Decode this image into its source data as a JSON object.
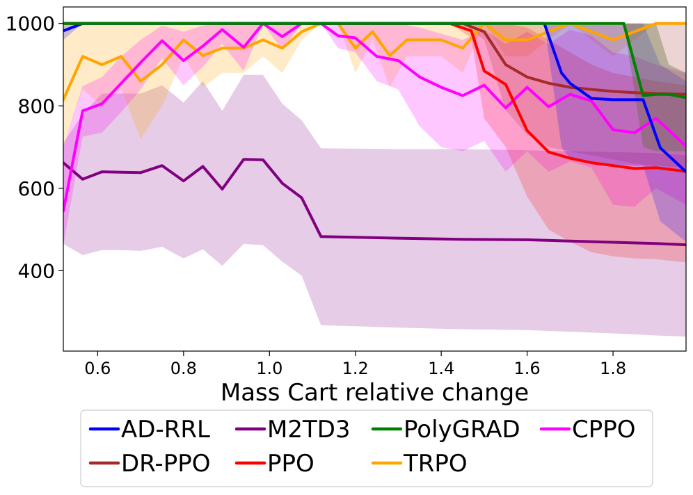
{
  "chart_data": {
    "type": "line",
    "title": "",
    "xlabel": "Mass Cart relative change",
    "ylabel": "",
    "xlim": [
      0.52,
      1.97
    ],
    "ylim": [
      205,
      1040
    ],
    "xticks": [
      0.6,
      0.8,
      1.0,
      1.2,
      1.4,
      1.6,
      1.8
    ],
    "xtick_labels": [
      "0.6",
      "0.8",
      "1.0",
      "1.2",
      "1.4",
      "1.6",
      "1.8"
    ],
    "yticks": [
      400,
      600,
      800,
      1000
    ],
    "ytick_labels": [
      "400",
      "600",
      "800",
      "1000"
    ],
    "legend_position": "bottom-outside",
    "series": [
      {
        "name": "M2TD3",
        "color": "#800080",
        "band_color": "#800080",
        "band_opacity": 0.2,
        "x": [
          0.52,
          0.565,
          0.61,
          0.655,
          0.7,
          0.75,
          0.8,
          0.845,
          0.89,
          0.94,
          0.985,
          1.03,
          1.075,
          1.12,
          1.3,
          1.45,
          1.6,
          1.7,
          1.8,
          1.9,
          1.97
        ],
        "values": [
          662,
          622,
          640,
          639,
          638,
          655,
          618,
          653,
          598,
          670,
          669,
          612,
          577,
          483,
          479,
          476,
          475,
          472,
          469,
          466,
          463
        ],
        "upper": [
          710,
          780,
          830,
          830,
          830,
          850,
          808,
          860,
          788,
          875,
          875,
          805,
          765,
          697,
          695,
          695,
          692,
          690,
          688,
          685,
          680
        ],
        "lower": [
          465,
          438,
          450,
          450,
          448,
          458,
          430,
          452,
          412,
          465,
          462,
          422,
          388,
          268,
          262,
          258,
          256,
          252,
          248,
          243,
          240
        ]
      },
      {
        "name": "TRPO",
        "color": "#ffa500",
        "band_color": "#ffa500",
        "band_opacity": 0.22,
        "x": [
          0.52,
          0.565,
          0.61,
          0.655,
          0.7,
          0.75,
          0.8,
          0.845,
          0.89,
          0.94,
          0.985,
          1.03,
          1.075,
          1.12,
          1.16,
          1.2,
          1.24,
          1.28,
          1.32,
          1.36,
          1.4,
          1.45,
          1.5,
          1.55,
          1.6,
          1.65,
          1.7,
          1.75,
          1.8,
          1.85,
          1.9,
          1.97
        ],
        "values": [
          815,
          920,
          900,
          920,
          860,
          900,
          960,
          922,
          940,
          940,
          960,
          940,
          980,
          1000,
          1000,
          940,
          980,
          922,
          960,
          960,
          960,
          940,
          1000,
          960,
          960,
          980,
          1000,
          980,
          960,
          980,
          1000,
          1000
        ],
        "upper": [
          1000,
          1000,
          1000,
          1000,
          1000,
          1000,
          1000,
          1000,
          1000,
          1000,
          1000,
          1000,
          1000,
          1000,
          1000,
          1000,
          1000,
          1000,
          1000,
          1000,
          1000,
          1000,
          1000,
          1000,
          1000,
          1000,
          1000,
          1000,
          1000,
          1000,
          1000,
          1000
        ],
        "lower": [
          700,
          840,
          800,
          840,
          720,
          800,
          920,
          845,
          880,
          880,
          920,
          880,
          960,
          1000,
          1000,
          880,
          960,
          845,
          920,
          920,
          920,
          880,
          1000,
          920,
          920,
          960,
          1000,
          960,
          920,
          960,
          1000,
          1000
        ]
      },
      {
        "name": "CPPO",
        "color": "#ff00ff",
        "band_color": "#ff00ff",
        "band_opacity": 0.22,
        "x": [
          0.52,
          0.565,
          0.61,
          0.655,
          0.7,
          0.75,
          0.8,
          0.845,
          0.89,
          0.94,
          0.985,
          1.03,
          1.075,
          1.12,
          1.16,
          1.2,
          1.25,
          1.3,
          1.35,
          1.4,
          1.45,
          1.5,
          1.55,
          1.6,
          1.65,
          1.7,
          1.75,
          1.8,
          1.85,
          1.9,
          1.97
        ],
        "values": [
          545,
          788,
          805,
          855,
          905,
          958,
          910,
          945,
          985,
          942,
          1000,
          968,
          1000,
          1000,
          970,
          965,
          920,
          910,
          870,
          845,
          825,
          850,
          795,
          845,
          798,
          828,
          812,
          742,
          735,
          770,
          702
        ],
        "upper": [
          700,
          848,
          870,
          920,
          960,
          995,
          980,
          995,
          1000,
          1000,
          1000,
          1000,
          1000,
          1000,
          1000,
          1000,
          1000,
          1000,
          990,
          975,
          960,
          985,
          950,
          980,
          950,
          985,
          970,
          930,
          920,
          900,
          880
        ],
        "lower": [
          462,
          725,
          735,
          785,
          840,
          915,
          850,
          895,
          950,
          885,
          1000,
          935,
          1000,
          1000,
          940,
          930,
          860,
          840,
          750,
          700,
          690,
          715,
          640,
          690,
          640,
          665,
          650,
          560,
          555,
          600,
          560
        ]
      },
      {
        "name": "PPO",
        "color": "#ff0000",
        "band_color": "#ff0000",
        "band_opacity": 0.2,
        "x": [
          0.52,
          1.42,
          1.47,
          1.5,
          1.55,
          1.6,
          1.65,
          1.7,
          1.75,
          1.8,
          1.85,
          1.9,
          1.97
        ],
        "values": [
          1000,
          1000,
          982,
          885,
          852,
          740,
          688,
          673,
          662,
          655,
          648,
          650,
          641
        ],
        "upper": [
          1000,
          1000,
          1000,
          1000,
          1000,
          990,
          960,
          930,
          900,
          880,
          870,
          860,
          850
        ],
        "lower": [
          1000,
          1000,
          965,
          770,
          700,
          580,
          500,
          470,
          445,
          435,
          430,
          428,
          420
        ]
      },
      {
        "name": "DR-PPO",
        "color": "#a52a2a",
        "band_color": "#a52a2a",
        "band_opacity": 0.2,
        "x": [
          0.52,
          1.45,
          1.5,
          1.55,
          1.6,
          1.65,
          1.7,
          1.75,
          1.8,
          1.85,
          1.9,
          1.97
        ],
        "values": [
          1000,
          1000,
          980,
          900,
          870,
          855,
          845,
          840,
          835,
          832,
          830,
          828
        ],
        "upper": [
          1000,
          1000,
          1000,
          1000,
          1000,
          1000,
          1000,
          1000,
          1000,
          1000,
          1000,
          1000
        ],
        "lower": [
          1000,
          1000,
          960,
          790,
          730,
          700,
          690,
          680,
          670,
          660,
          655,
          650
        ]
      },
      {
        "name": "AD-RRL",
        "color": "#0000ff",
        "band_color": "#0000ff",
        "band_opacity": 0.2,
        "x": [
          0.52,
          0.565,
          1.64,
          1.68,
          1.7,
          1.75,
          1.8,
          1.85,
          1.87,
          1.91,
          1.97
        ],
        "values": [
          982,
          1000,
          1000,
          880,
          855,
          818,
          815,
          815,
          815,
          698,
          640
        ],
        "upper": [
          1000,
          1000,
          1000,
          1000,
          1000,
          1000,
          1000,
          1000,
          1000,
          900,
          860
        ],
        "lower": [
          960,
          1000,
          1000,
          700,
          670,
          660,
          658,
          655,
          655,
          520,
          470
        ]
      },
      {
        "name": "PolyGRAD",
        "color": "#008000",
        "band_color": "#556b2f",
        "band_opacity": 0.35,
        "x": [
          0.52,
          1.825,
          1.87,
          1.9,
          1.93,
          1.97
        ],
        "values": [
          1000,
          1000,
          825,
          828,
          828,
          820
        ],
        "upper": [
          1000,
          1000,
          1000,
          1000,
          900,
          880
        ],
        "lower": [
          1000,
          1000,
          700,
          690,
          690,
          690
        ]
      }
    ],
    "legend": {
      "rows": [
        [
          "AD-RRL",
          "M2TD3",
          "PolyGRAD",
          "CPPO"
        ],
        [
          "DR-PPO",
          "PPO",
          "TRPO"
        ]
      ],
      "colors": {
        "AD-RRL": "#0000ff",
        "M2TD3": "#800080",
        "PolyGRAD": "#008000",
        "CPPO": "#ff00ff",
        "DR-PPO": "#a52a2a",
        "PPO": "#ff0000",
        "TRPO": "#ffa500"
      }
    }
  }
}
